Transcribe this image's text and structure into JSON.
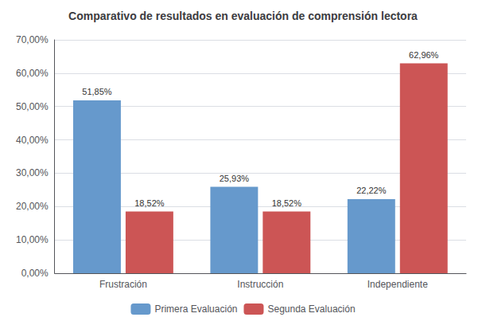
{
  "chart_data": {
    "type": "bar",
    "title": "Comparativo de resultados en evaluación de comprensión lectora",
    "categories": [
      "Frustración",
      "Instrucción",
      "Independiente"
    ],
    "series": [
      {
        "name": "Primera Evaluación",
        "color": "#6699CC",
        "values": [
          51.85,
          25.93,
          22.22
        ],
        "value_labels": [
          "51,85%",
          "25,93%",
          "22,22%"
        ]
      },
      {
        "name": "Segunda Evaluación",
        "color": "#CC5555",
        "values": [
          18.52,
          18.52,
          62.96
        ],
        "value_labels": [
          "18,52%",
          "18,52%",
          "62,96%"
        ]
      }
    ],
    "ylim": [
      0,
      70
    ],
    "yticks": [
      {
        "value": 0,
        "label": "0,00%"
      },
      {
        "value": 10,
        "label": "10,00%"
      },
      {
        "value": 20,
        "label": "20,00%"
      },
      {
        "value": 30,
        "label": "30,00%"
      },
      {
        "value": 40,
        "label": "40,00%"
      },
      {
        "value": 50,
        "label": "50,00%"
      },
      {
        "value": 60,
        "label": "60,00%"
      },
      {
        "value": 70,
        "label": "70,00%"
      }
    ],
    "grid": true,
    "legend": "bottom",
    "data_labels": true
  }
}
